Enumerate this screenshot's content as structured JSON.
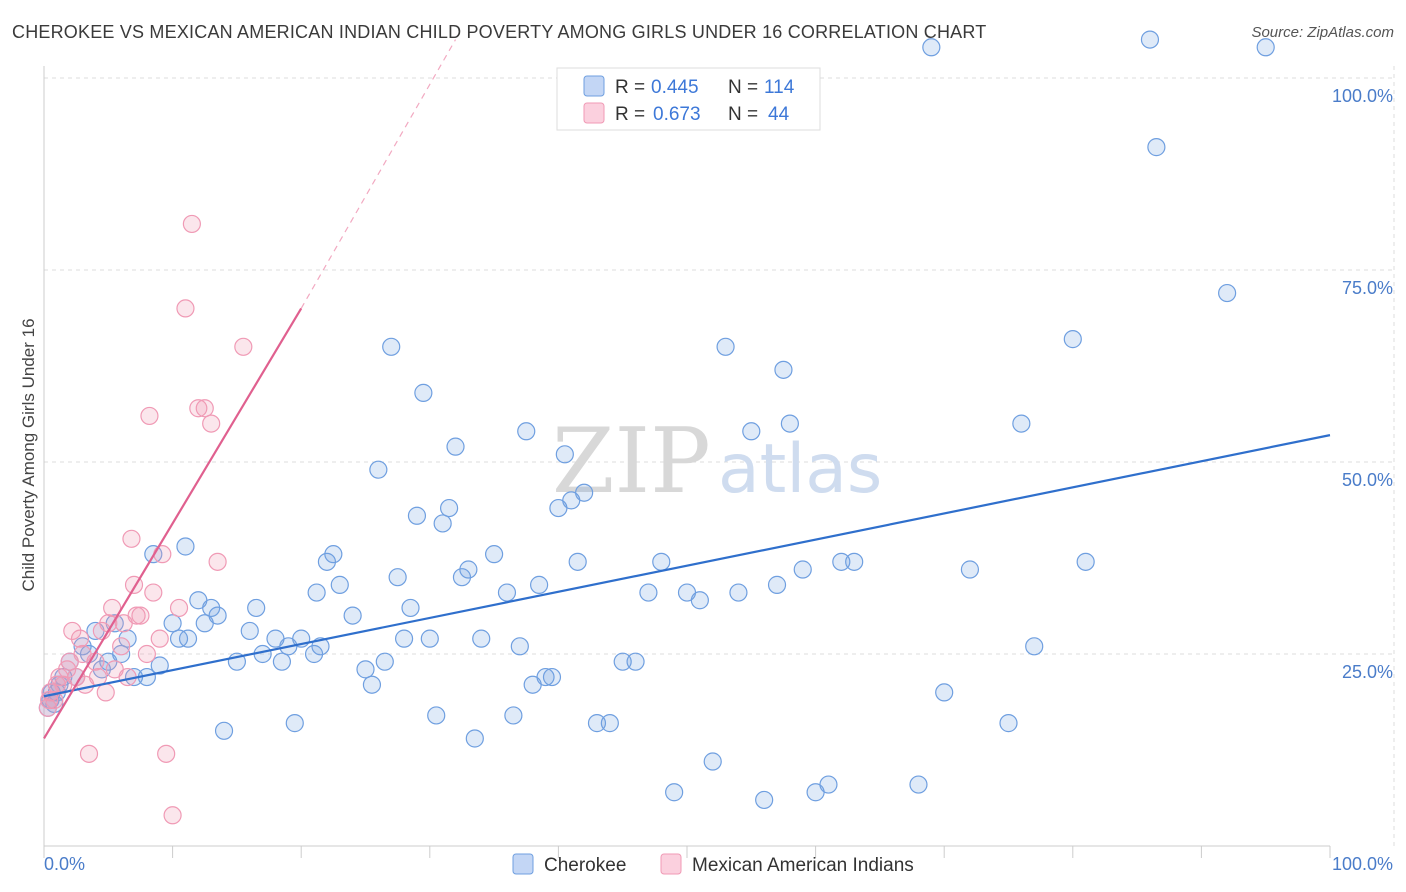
{
  "title": "CHEROKEE VS MEXICAN AMERICAN INDIAN CHILD POVERTY AMONG GIRLS UNDER 16 CORRELATION CHART",
  "source": "Source: ZipAtlas.com",
  "watermark": {
    "zip": "ZIP",
    "atlas": "atlas"
  },
  "colors": {
    "cherokee": "#6f9fe0",
    "cherokee_line": "#2f6fcc",
    "mexican": "#f09ab5",
    "mexican_line": "#e0608f"
  },
  "chart_data": {
    "type": "scatter",
    "ylabel": "Child Poverty Among Girls Under 16",
    "xlim": [
      0,
      100
    ],
    "ylim": [
      0,
      100
    ],
    "x_ticks": [
      "0.0%",
      "100.0%"
    ],
    "y_ticks": [
      "25.0%",
      "50.0%",
      "75.0%",
      "100.0%"
    ],
    "grid": true,
    "legend_position": "top-center",
    "legend": [
      {
        "r_label": "R =",
        "r": "0.445",
        "n_label": "N =",
        "n": "114"
      },
      {
        "r_label": "R =",
        "r": "0.673",
        "n_label": "N =",
        "n": "44"
      }
    ],
    "series": [
      {
        "name": "Cherokee",
        "trend": {
          "x": [
            0,
            100
          ],
          "y": [
            19.5,
            53.5
          ]
        },
        "points": [
          [
            0.3,
            18
          ],
          [
            0.5,
            19
          ],
          [
            0.6,
            20
          ],
          [
            0.8,
            18.5
          ],
          [
            1,
            20
          ],
          [
            1.2,
            21
          ],
          [
            1.5,
            22
          ],
          [
            2,
            24
          ],
          [
            2.5,
            22
          ],
          [
            3,
            26
          ],
          [
            3.5,
            25
          ],
          [
            4,
            28
          ],
          [
            4.5,
            23
          ],
          [
            5,
            24
          ],
          [
            5.5,
            29
          ],
          [
            6,
            25
          ],
          [
            6.5,
            27
          ],
          [
            7,
            22
          ],
          [
            8,
            22
          ],
          [
            8.5,
            38
          ],
          [
            9,
            23.5
          ],
          [
            10,
            29
          ],
          [
            10.5,
            27
          ],
          [
            11,
            39
          ],
          [
            11.2,
            27
          ],
          [
            12,
            32
          ],
          [
            12.5,
            29
          ],
          [
            13,
            31
          ],
          [
            13.5,
            30
          ],
          [
            14,
            15
          ],
          [
            15,
            24
          ],
          [
            16,
            28
          ],
          [
            16.5,
            31
          ],
          [
            17,
            25
          ],
          [
            18,
            27
          ],
          [
            18.5,
            24
          ],
          [
            19,
            26
          ],
          [
            19.5,
            16
          ],
          [
            20,
            27
          ],
          [
            21,
            25
          ],
          [
            21.2,
            33
          ],
          [
            21.5,
            26
          ],
          [
            22,
            37
          ],
          [
            22.5,
            38
          ],
          [
            23,
            34
          ],
          [
            24,
            30
          ],
          [
            25,
            23
          ],
          [
            25.5,
            21
          ],
          [
            26,
            49
          ],
          [
            26.5,
            24
          ],
          [
            27,
            65
          ],
          [
            27.5,
            35
          ],
          [
            28,
            27
          ],
          [
            28.5,
            31
          ],
          [
            29,
            43
          ],
          [
            29.5,
            59
          ],
          [
            30,
            27
          ],
          [
            30.5,
            17
          ],
          [
            31,
            42
          ],
          [
            31.5,
            44
          ],
          [
            32,
            52
          ],
          [
            32.5,
            35
          ],
          [
            33,
            36
          ],
          [
            33.5,
            14
          ],
          [
            34,
            27
          ],
          [
            35,
            38
          ],
          [
            36,
            33
          ],
          [
            36.5,
            17
          ],
          [
            37,
            26
          ],
          [
            37.5,
            54
          ],
          [
            38,
            21
          ],
          [
            38.5,
            34
          ],
          [
            39,
            22
          ],
          [
            39.5,
            22
          ],
          [
            40,
            44
          ],
          [
            40.5,
            51
          ],
          [
            41,
            45
          ],
          [
            41.5,
            37
          ],
          [
            42,
            46
          ],
          [
            43,
            16
          ],
          [
            44,
            16
          ],
          [
            45,
            24
          ],
          [
            46,
            24
          ],
          [
            47,
            33
          ],
          [
            48,
            37
          ],
          [
            49,
            7
          ],
          [
            50,
            33
          ],
          [
            51,
            32
          ],
          [
            52,
            11
          ],
          [
            53,
            65
          ],
          [
            54,
            33
          ],
          [
            55,
            54
          ],
          [
            56,
            6
          ],
          [
            57,
            34
          ],
          [
            57.5,
            62
          ],
          [
            58,
            55
          ],
          [
            59,
            36
          ],
          [
            60,
            7
          ],
          [
            61,
            8
          ],
          [
            62,
            37
          ],
          [
            63,
            37
          ],
          [
            68,
            8
          ],
          [
            69,
            104
          ],
          [
            70,
            20
          ],
          [
            72,
            36
          ],
          [
            75,
            16
          ],
          [
            76,
            55
          ],
          [
            77,
            26
          ],
          [
            80,
            66
          ],
          [
            81,
            37
          ],
          [
            86,
            105
          ],
          [
            86.5,
            91
          ],
          [
            92,
            72
          ],
          [
            95,
            104
          ]
        ]
      },
      {
        "name": "Mexican American Indians",
        "trend": {
          "x": [
            0,
            20
          ],
          "y": [
            14,
            70
          ]
        },
        "trend_extension": {
          "x": [
            20,
            32
          ],
          "y": [
            70,
            105
          ]
        },
        "points": [
          [
            0.3,
            18
          ],
          [
            0.5,
            20
          ],
          [
            0.8,
            19
          ],
          [
            1,
            21
          ],
          [
            1.2,
            22
          ],
          [
            1.5,
            21
          ],
          [
            2,
            24
          ],
          [
            2.5,
            22
          ],
          [
            2.8,
            27
          ],
          [
            3,
            25
          ],
          [
            3.2,
            21
          ],
          [
            3.5,
            12
          ],
          [
            4,
            24
          ],
          [
            4.2,
            22
          ],
          [
            4.5,
            28
          ],
          [
            5,
            29
          ],
          [
            5.3,
            31
          ],
          [
            5.5,
            23
          ],
          [
            6,
            26
          ],
          [
            6.2,
            29
          ],
          [
            6.5,
            22
          ],
          [
            6.8,
            40
          ],
          [
            7,
            34
          ],
          [
            7.2,
            30
          ],
          [
            7.5,
            30
          ],
          [
            8,
            25
          ],
          [
            8.2,
            56
          ],
          [
            8.5,
            33
          ],
          [
            9,
            27
          ],
          [
            9.2,
            38
          ],
          [
            9.5,
            12
          ],
          [
            10,
            4
          ],
          [
            10.5,
            31
          ],
          [
            11,
            70
          ],
          [
            11.5,
            81
          ],
          [
            12,
            57
          ],
          [
            12.5,
            57
          ],
          [
            13,
            55
          ],
          [
            13.5,
            37
          ],
          [
            15.5,
            65
          ],
          [
            0.4,
            19
          ],
          [
            1.8,
            23
          ],
          [
            4.8,
            20
          ],
          [
            2.2,
            28
          ]
        ]
      }
    ]
  }
}
